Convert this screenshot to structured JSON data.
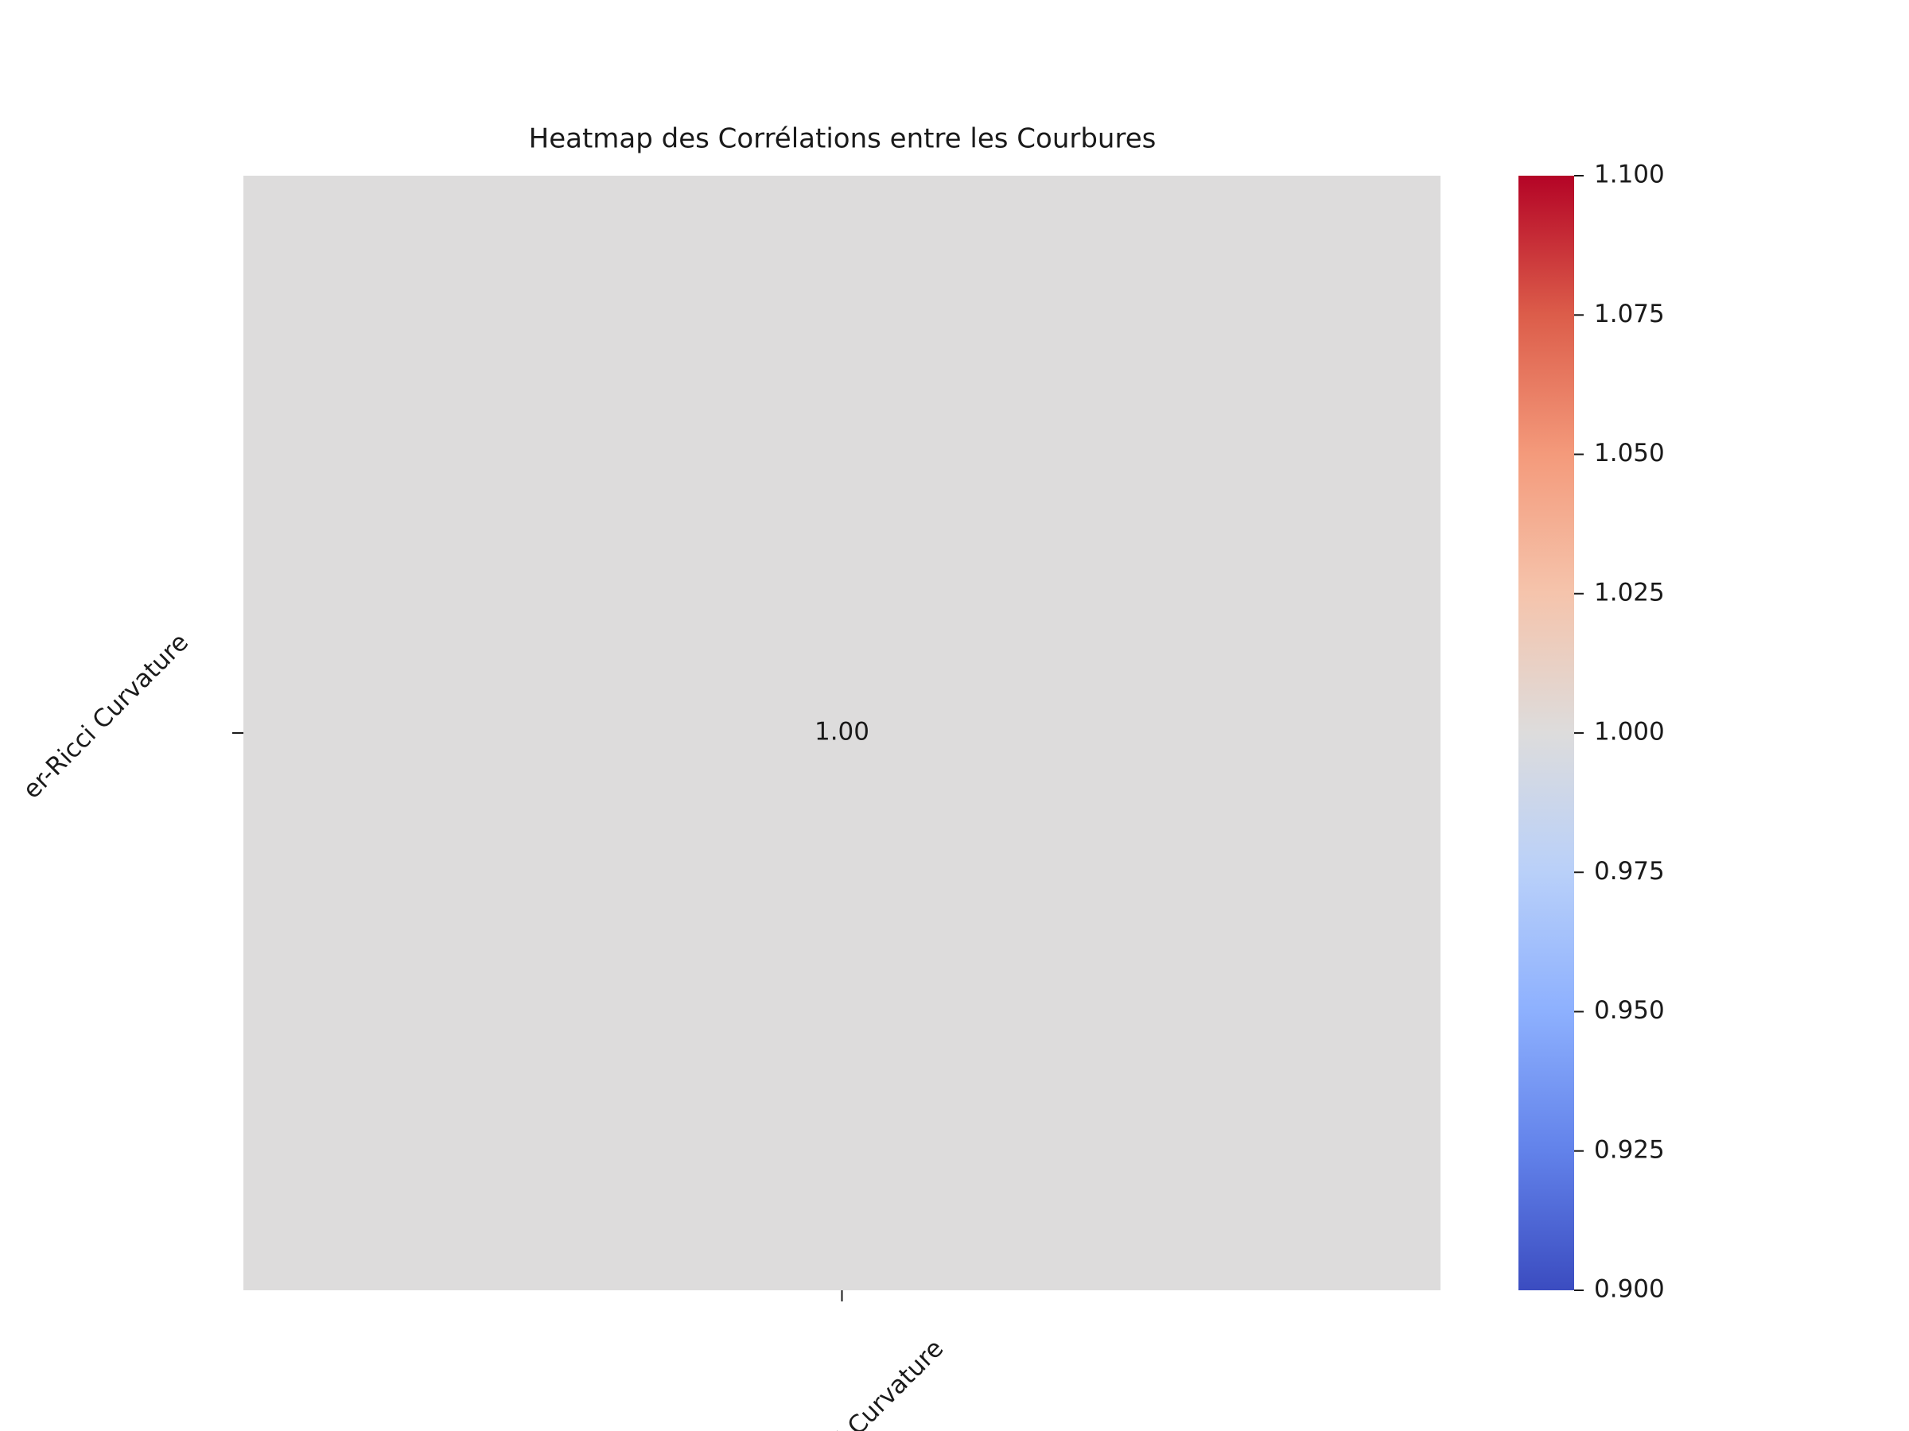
{
  "chart_data": {
    "type": "heatmap",
    "title": "Heatmap des Corrélations entre les Courbures",
    "x_labels": [
      "i Curvature"
    ],
    "y_labels": [
      "er-Ricci Curvature"
    ],
    "values": [
      [
        1
      ]
    ],
    "value_labels": [
      [
        "1.00"
      ]
    ],
    "colormap": [
      "#3b4cc0",
      "#6282ea",
      "#8db0fe",
      "#b9d0f9",
      "#dddcdc",
      "#f5c4ac",
      "#f49a7b",
      "#dc5d4a",
      "#b40426"
    ],
    "clim": [
      0.9,
      1.1
    ],
    "colorbar_ticks": [
      {
        "value": 0.9,
        "label": "0.900"
      },
      {
        "value": 0.925,
        "label": "0.925"
      },
      {
        "value": 0.95,
        "label": "0.950"
      },
      {
        "value": 0.975,
        "label": "0.975"
      },
      {
        "value": 1,
        "label": "1.000"
      },
      {
        "value": 1.025,
        "label": "1.025"
      },
      {
        "value": 1.05,
        "label": "1.050"
      },
      {
        "value": 1.075,
        "label": "1.075"
      },
      {
        "value": 1.1,
        "label": "1.100"
      }
    ]
  }
}
